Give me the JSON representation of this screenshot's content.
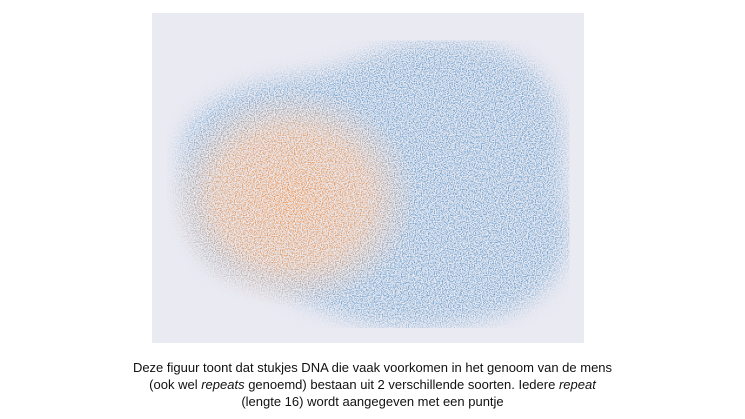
{
  "caption": {
    "lines": [
      [
        "Deze figuur toont dat stukjes DNA die vaak voorkomen  in het genoom van de mens"
      ],
      [
        "(ook wel ",
        "repeats",
        " genoemd) bestaan uit 2 verschillende soorten. Iedere ",
        "repeat"
      ],
      [
        "(lengte 16) wordt aangegeven met een puntje"
      ]
    ]
  }
}
